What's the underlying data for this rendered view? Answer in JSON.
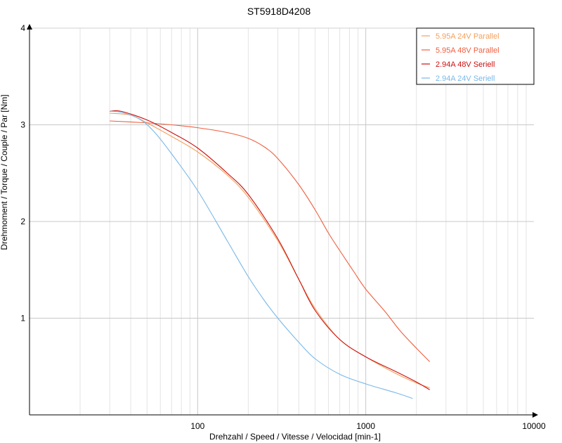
{
  "chart_data": {
    "type": "line",
    "title": "ST5918D4208",
    "xlabel": "Drehzahl / Speed / Vitesse / Velocidad [min-1]",
    "ylabel": "Drehmoment / Torque / Couple / Par [Nm]",
    "x_scale": "log",
    "xlim": [
      10,
      10000
    ],
    "ylim": [
      0,
      4
    ],
    "x_ticks": [
      "100",
      "1000",
      "10000"
    ],
    "y_ticks": [
      "1",
      "2",
      "3",
      "4"
    ],
    "grid": true,
    "legend_position": "top-right",
    "series": [
      {
        "name": "5.95A  24V  Parallel",
        "color": "#f5a05a",
        "points": [
          [
            30,
            3.12
          ],
          [
            40,
            3.1
          ],
          [
            50,
            3.02
          ],
          [
            70,
            2.88
          ],
          [
            100,
            2.72
          ],
          [
            150,
            2.48
          ],
          [
            200,
            2.25
          ],
          [
            300,
            1.8
          ],
          [
            400,
            1.4
          ],
          [
            500,
            1.1
          ],
          [
            700,
            0.78
          ],
          [
            1000,
            0.6
          ],
          [
            1500,
            0.43
          ],
          [
            2000,
            0.33
          ],
          [
            2400,
            0.28
          ]
        ]
      },
      {
        "name": "5.95A  48V  Parallel",
        "color": "#f06040",
        "points": [
          [
            30,
            3.04
          ],
          [
            50,
            3.02
          ],
          [
            70,
            3.0
          ],
          [
            100,
            2.97
          ],
          [
            150,
            2.92
          ],
          [
            200,
            2.86
          ],
          [
            250,
            2.77
          ],
          [
            300,
            2.65
          ],
          [
            400,
            2.38
          ],
          [
            500,
            2.12
          ],
          [
            600,
            1.88
          ],
          [
            700,
            1.7
          ],
          [
            850,
            1.48
          ],
          [
            1000,
            1.3
          ],
          [
            1300,
            1.07
          ],
          [
            1600,
            0.87
          ],
          [
            2000,
            0.69
          ],
          [
            2400,
            0.55
          ]
        ]
      },
      {
        "name": "2.94A  48V  Seriell",
        "color": "#cc1010",
        "points": [
          [
            30,
            3.14
          ],
          [
            35,
            3.14
          ],
          [
            50,
            3.05
          ],
          [
            70,
            2.92
          ],
          [
            100,
            2.76
          ],
          [
            150,
            2.5
          ],
          [
            200,
            2.28
          ],
          [
            300,
            1.82
          ],
          [
            400,
            1.4
          ],
          [
            500,
            1.08
          ],
          [
            700,
            0.78
          ],
          [
            1000,
            0.6
          ],
          [
            1500,
            0.45
          ],
          [
            2000,
            0.34
          ],
          [
            2400,
            0.26
          ]
        ]
      },
      {
        "name": "2.94A  24V  Seriell",
        "color": "#7ab8e8",
        "points": [
          [
            30,
            3.14
          ],
          [
            35,
            3.13
          ],
          [
            45,
            3.06
          ],
          [
            55,
            2.93
          ],
          [
            70,
            2.7
          ],
          [
            100,
            2.32
          ],
          [
            150,
            1.8
          ],
          [
            200,
            1.43
          ],
          [
            250,
            1.18
          ],
          [
            300,
            1.0
          ],
          [
            400,
            0.75
          ],
          [
            500,
            0.58
          ],
          [
            700,
            0.42
          ],
          [
            1000,
            0.32
          ],
          [
            1500,
            0.23
          ],
          [
            1900,
            0.17
          ]
        ]
      }
    ]
  }
}
